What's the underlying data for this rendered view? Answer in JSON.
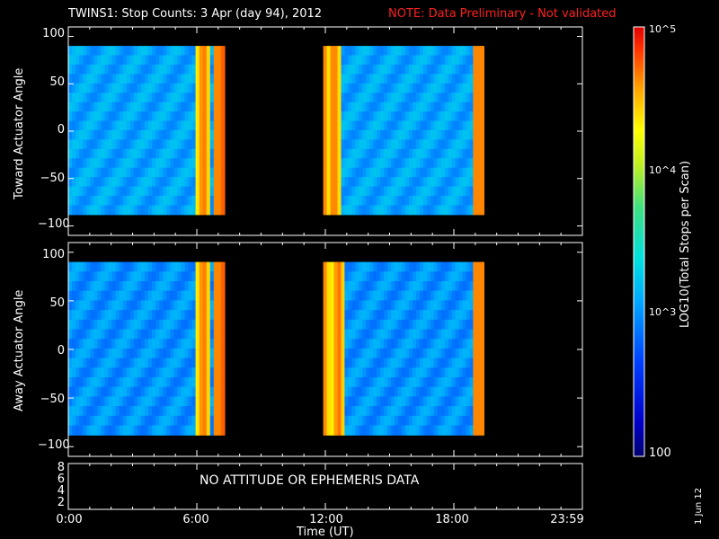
{
  "header": {
    "title": "TWINS1: Stop Counts:  3 Apr (day  94), 2012",
    "note": "NOTE: Data Preliminary - Not validated"
  },
  "colorbar": {
    "label": "LOG10(Total Stops per Scan)",
    "tick_labels": [
      "10^5",
      "10^4",
      "10^3",
      "100"
    ],
    "range": [
      100,
      100000
    ],
    "scale": "log"
  },
  "panels": {
    "toward": {
      "ylabel": "Toward Actuator Angle",
      "yticks": [
        "100",
        "50",
        "0",
        "−50",
        "−100"
      ]
    },
    "away": {
      "ylabel": "Away Actuator Angle",
      "yticks": [
        "100",
        "50",
        "0",
        "−50",
        "−100"
      ]
    },
    "ephem": {
      "yticks": [
        "8",
        "6",
        "4",
        "2"
      ],
      "message": "NO ATTITUDE OR EPHEMERIS DATA"
    }
  },
  "xaxis": {
    "label": "Time (UT)",
    "ticks": [
      "0:00",
      "6:00",
      "12:00",
      "18:00",
      "23:59"
    ]
  },
  "stamp": "1 Jun 12",
  "colors": {
    "background": "#000000",
    "note": "#ff2020",
    "axes": "#ffffff"
  },
  "chart_data": [
    {
      "type": "heatmap",
      "title": "TWINS1: Stop Counts:  3 Apr (day  94), 2012",
      "ylabel": "Toward Actuator Angle",
      "xlabel": "",
      "x_range_hours": [
        0,
        24
      ],
      "ylim": [
        -110,
        110
      ],
      "z_scale": "log",
      "z_range": [
        100,
        100000
      ],
      "data_intervals_hours": [
        [
          0.0,
          7.3
        ],
        [
          11.9,
          19.4
        ]
      ],
      "angle_range": [
        -88,
        90
      ],
      "typical_counts": 1200,
      "high_count_edges_hours": [
        6.3,
        7.2,
        11.9,
        12.4
      ]
    },
    {
      "type": "heatmap",
      "ylabel": "Away Actuator Angle",
      "xlabel": "",
      "x_range_hours": [
        0,
        24
      ],
      "ylim": [
        -110,
        110
      ],
      "z_scale": "log",
      "z_range": [
        100,
        100000
      ],
      "data_intervals_hours": [
        [
          0.0,
          7.3
        ],
        [
          11.9,
          19.4
        ]
      ],
      "angle_range": [
        -88,
        90
      ],
      "typical_counts": 1000,
      "high_count_edges_hours": [
        6.3,
        7.2,
        11.9,
        12.6
      ]
    },
    {
      "type": "table",
      "ylim": [
        1,
        9
      ],
      "xlabel": "Time (UT)",
      "message": "NO ATTITUDE OR EPHEMERIS DATA"
    }
  ]
}
